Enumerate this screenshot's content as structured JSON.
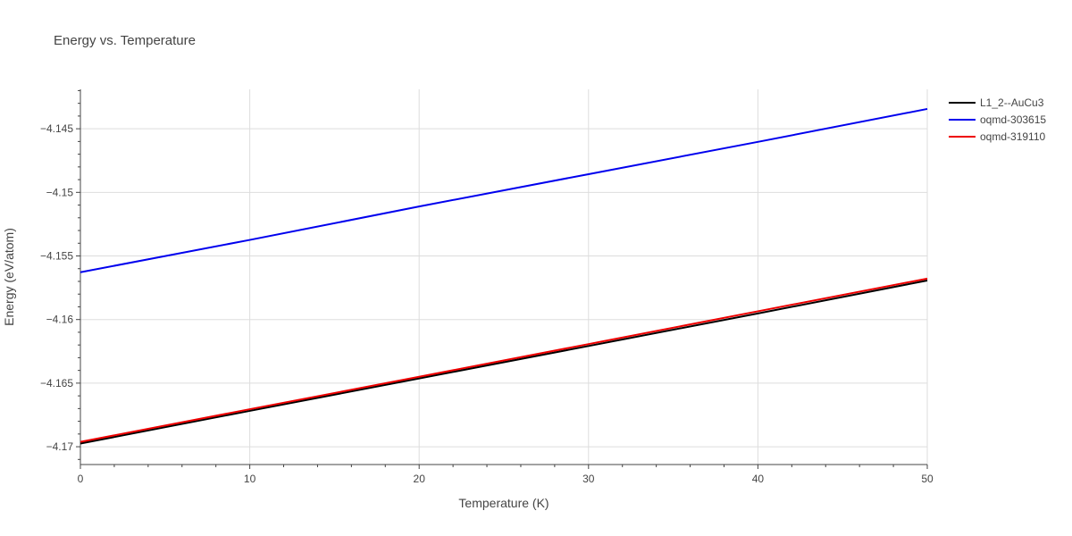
{
  "chart_data": {
    "type": "line",
    "title": "Energy vs. Temperature",
    "xlabel": "Temperature (K)",
    "ylabel": "Energy (eV/atom)",
    "xlim": [
      0,
      50
    ],
    "ylim": [
      -4.1714,
      -4.1419
    ],
    "x_ticks": [
      0,
      10,
      20,
      30,
      40,
      50
    ],
    "x_tick_labels": [
      "0",
      "10",
      "20",
      "30",
      "40",
      "50"
    ],
    "y_ticks": [
      -4.17,
      -4.165,
      -4.16,
      -4.155,
      -4.15,
      -4.145
    ],
    "y_tick_labels": [
      "−4.17",
      "−4.165",
      "−4.16",
      "−4.155",
      "−4.15",
      "−4.145"
    ],
    "grid": true,
    "legend_position": "top-right",
    "series": [
      {
        "name": "L1_2--AuCu3",
        "color": "#000000",
        "x": [
          0,
          10,
          20,
          30,
          40,
          50
        ],
        "y": [
          -4.16975,
          -4.16718,
          -4.16463,
          -4.16208,
          -4.15952,
          -4.15693
        ]
      },
      {
        "name": "oqmd-303615",
        "color": "#0000ee",
        "x": [
          0,
          10,
          20,
          30,
          40,
          50
        ],
        "y": [
          -4.15628,
          -4.15374,
          -4.15111,
          -4.14857,
          -4.14603,
          -4.14344
        ]
      },
      {
        "name": "oqmd-319110",
        "color": "#ee0000",
        "x": [
          0,
          10,
          20,
          30,
          40,
          50
        ],
        "y": [
          -4.16962,
          -4.16705,
          -4.1645,
          -4.16193,
          -4.15935,
          -4.15678
        ]
      }
    ]
  }
}
